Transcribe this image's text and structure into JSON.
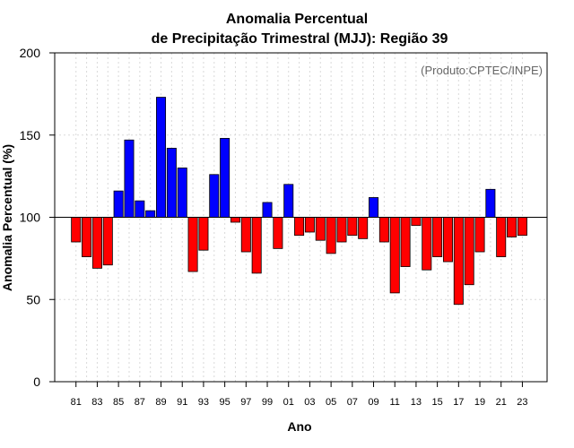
{
  "chart_data": {
    "type": "bar",
    "title_line1": "Anomalia Percentual",
    "title_line2": "de Precipitação Trimestral (MJJ): Região 39",
    "credit": "(Produto:CPTEC/INPE)",
    "xlabel": "Ano",
    "ylabel": "Anomalia Percentual (%)",
    "ylim": [
      0,
      200
    ],
    "yticks": [
      0,
      50,
      100,
      150,
      200
    ],
    "baseline": 100,
    "grid": true,
    "years": [
      1981,
      1982,
      1983,
      1984,
      1985,
      1986,
      1987,
      1988,
      1989,
      1990,
      1991,
      1992,
      1993,
      1994,
      1995,
      1996,
      1997,
      1998,
      1999,
      2000,
      2001,
      2002,
      2003,
      2004,
      2005,
      2006,
      2007,
      2008,
      2009,
      2010,
      2011,
      2012,
      2013,
      2014,
      2015,
      2016,
      2017,
      2018,
      2019,
      2020,
      2021,
      2022,
      2023
    ],
    "tick_labels": [
      "81",
      "83",
      "85",
      "87",
      "89",
      "91",
      "93",
      "95",
      "97",
      "99",
      "01",
      "03",
      "05",
      "07",
      "09",
      "11",
      "13",
      "15",
      "17",
      "19",
      "21",
      "23"
    ],
    "tick_years": [
      1981,
      1983,
      1985,
      1987,
      1989,
      1991,
      1993,
      1995,
      1997,
      1999,
      2001,
      2003,
      2005,
      2007,
      2009,
      2011,
      2013,
      2015,
      2017,
      2019,
      2021,
      2023
    ],
    "values": [
      85,
      76,
      69,
      71,
      116,
      147,
      110,
      104,
      173,
      142,
      130,
      67,
      80,
      126,
      148,
      97,
      79,
      66,
      109,
      81,
      120,
      89,
      91,
      86,
      78,
      85,
      89,
      87,
      112,
      85,
      54,
      70,
      95,
      68,
      76,
      73,
      47,
      59,
      79,
      117,
      76,
      88,
      89
    ],
    "colors": {
      "above": "#0000ff",
      "below": "#ff0000",
      "edge": "#000000",
      "grid": "#d9d9d9"
    }
  }
}
